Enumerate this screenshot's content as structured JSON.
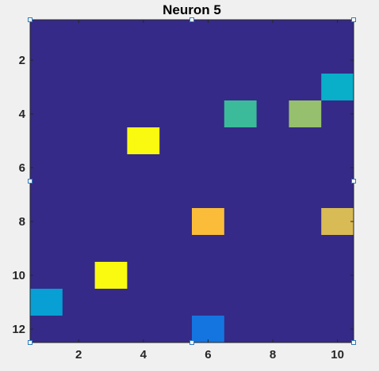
{
  "chart_data": {
    "type": "heatmap",
    "title": "Neuron 5",
    "xlabel": "",
    "ylabel": "",
    "x_ticks": [
      2,
      4,
      6,
      8,
      10
    ],
    "y_ticks": [
      2,
      4,
      6,
      8,
      10,
      12
    ],
    "x_range": [
      0.5,
      10.5
    ],
    "y_range": [
      0.5,
      12.5
    ],
    "y_direction": "top-to-bottom",
    "grid": false,
    "colormap": "parula",
    "background_color": "#352a87",
    "cells": [
      {
        "col": 10,
        "row": 3,
        "color": "#09aec9"
      },
      {
        "col": 7,
        "row": 4,
        "color": "#3cbb9a"
      },
      {
        "col": 9,
        "row": 4,
        "color": "#96c06e"
      },
      {
        "col": 4,
        "row": 5,
        "color": "#f9fa10"
      },
      {
        "col": 6,
        "row": 8,
        "color": "#fbbc3a"
      },
      {
        "col": 10,
        "row": 8,
        "color": "#d9bb55"
      },
      {
        "col": 3,
        "row": 10,
        "color": "#f9fa10"
      },
      {
        "col": 1,
        "row": 11,
        "color": "#079fd4"
      },
      {
        "col": 6,
        "row": 12,
        "color": "#1475e0"
      }
    ]
  }
}
